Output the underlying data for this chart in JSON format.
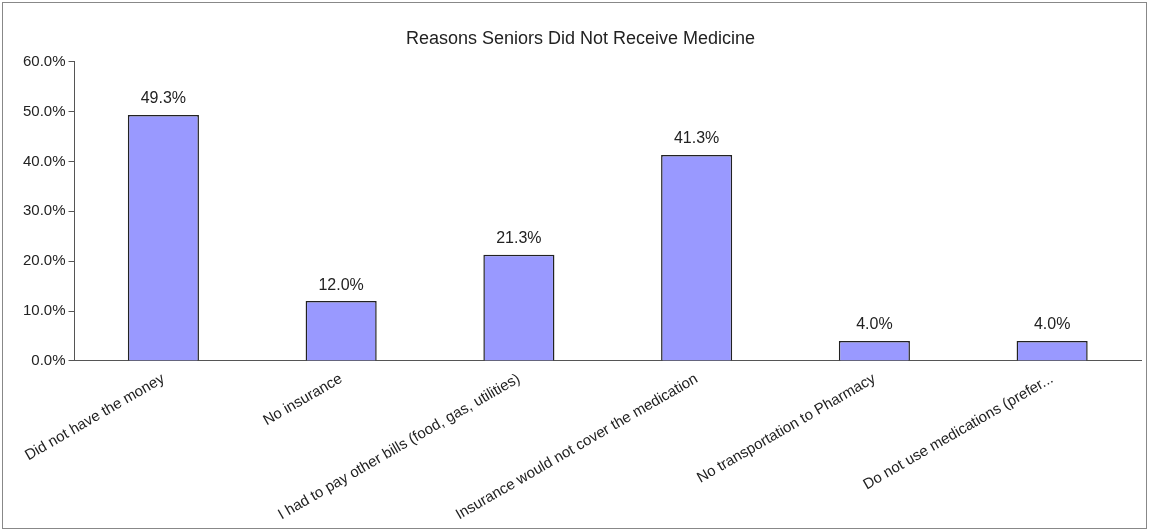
{
  "chart_data": {
    "type": "bar",
    "title": "Reasons Seniors Did Not Receive Medicine",
    "categories": [
      "Did not have the money",
      "No insurance",
      "I had to pay other bills (food, gas, utilities)",
      "Insurance would not cover the medication",
      "No transportation to Pharmacy",
      "Do not use medications (prefer..."
    ],
    "values": [
      49.3,
      12.0,
      21.3,
      41.3,
      4.0,
      4.0
    ],
    "value_labels": [
      "49.3%",
      "12.0%",
      "21.3%",
      "41.3%",
      "4.0%",
      "4.0%"
    ],
    "color": "#9999ff",
    "ylim": [
      0,
      60
    ],
    "yticks": [
      {
        "value": 0,
        "label": "0.0%"
      },
      {
        "value": 10,
        "label": "10.0%"
      },
      {
        "value": 20,
        "label": "20.0%"
      },
      {
        "value": 30,
        "label": "30.0%"
      },
      {
        "value": 40,
        "label": "40.0%"
      },
      {
        "value": 50,
        "label": "50.0%"
      },
      {
        "value": 60,
        "label": "60.0%"
      }
    ],
    "grid": false,
    "legend": false
  }
}
